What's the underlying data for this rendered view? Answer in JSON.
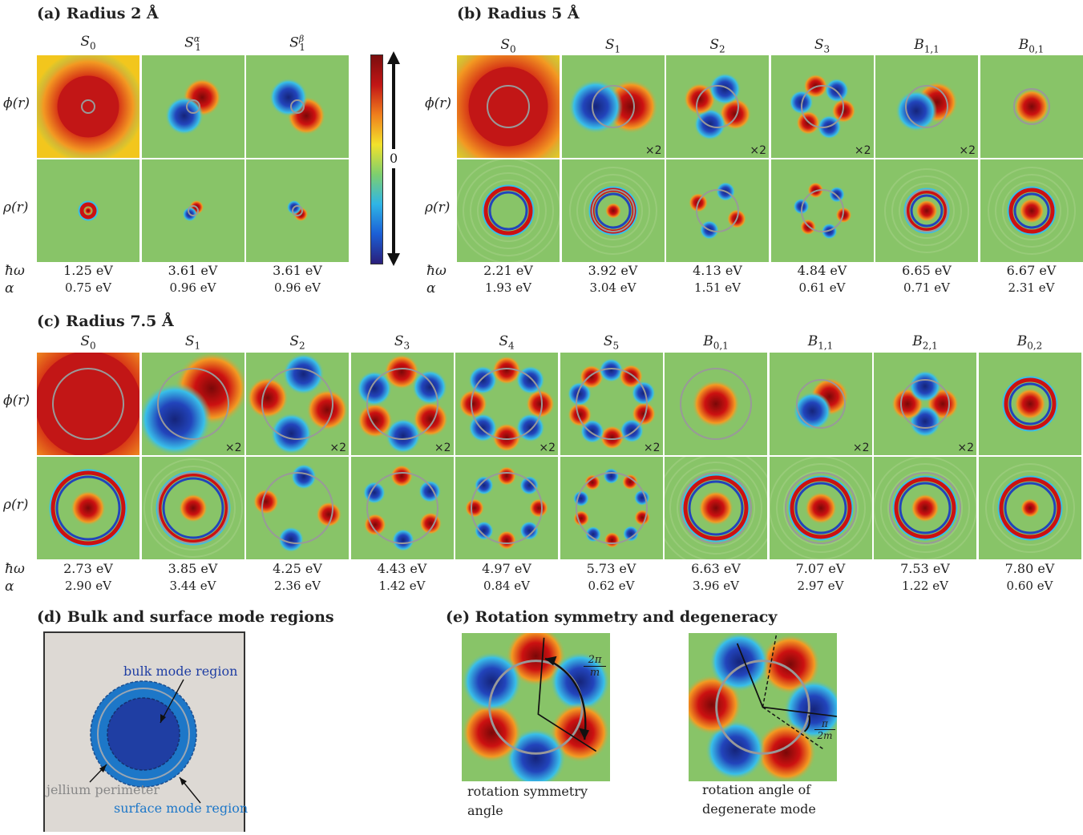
{
  "panels": {
    "a": {
      "title": "(a) Radius 2 Å",
      "cols": [
        "S0",
        "S1α",
        "S1β"
      ],
      "hw": [
        "1.25 eV",
        "3.61 eV",
        "3.61 eV"
      ],
      "alpha": [
        "0.75 eV",
        "0.96 eV",
        "0.96 eV"
      ]
    },
    "b": {
      "title": "(b) Radius 5 Å",
      "cols": [
        "S0",
        "S1",
        "S2",
        "S3",
        "B1,1",
        "B0,1"
      ],
      "hw": [
        "2.21 eV",
        "3.92 eV",
        "4.13 eV",
        "4.84 eV",
        "6.65 eV",
        "6.67 eV"
      ],
      "alpha": [
        "1.93 eV",
        "3.04 eV",
        "1.51 eV",
        "0.61 eV",
        "0.71 eV",
        "2.31 eV"
      ]
    },
    "c": {
      "title": "(c) Radius 7.5 Å",
      "cols": [
        "S0",
        "S1",
        "S2",
        "S3",
        "S4",
        "S5",
        "B0,1",
        "B1,1",
        "B2,1",
        "B0,2"
      ],
      "hw": [
        "2.73 eV",
        "3.85 eV",
        "4.25 eV",
        "4.43 eV",
        "4.97 eV",
        "5.73 eV",
        "6.63 eV",
        "7.07 eV",
        "7.53 eV",
        "7.80 eV"
      ],
      "alpha": [
        "2.90 eV",
        "3.44 eV",
        "2.36 eV",
        "1.42 eV",
        "0.84 eV",
        "0.62 eV",
        "3.96 eV",
        "2.97 eV",
        "1.22 eV",
        "0.60 eV"
      ]
    },
    "d": {
      "title": "(d) Bulk and surface mode regions",
      "bulk": "bulk mode region",
      "jellium": "jellium perimeter",
      "surface": "surface mode region"
    },
    "e": {
      "title": "(e) Rotation symmetry and degeneracy",
      "cap1a": "rotation symmetry",
      "cap1b": "angle",
      "cap2a": "rotation angle of",
      "cap2b": "degenerate mode",
      "ann1a": "2π",
      "ann1b": "m",
      "ann2a": "π",
      "ann2b": "2m"
    }
  },
  "labels": {
    "phi": "ϕ(r)",
    "rho": "ρ(r)",
    "hw": "ħω",
    "alpha": "α",
    "mult": "×2",
    "zero": "0"
  },
  "colors": {
    "background": "#88c468",
    "positive": "#cc1111",
    "negative": "#2244bb",
    "ring": "#999999"
  },
  "colorbar": [
    "#2a1f7a",
    "#1b5fd6",
    "#2fb5e6",
    "#7ecf6e",
    "#f2e22b",
    "#f07f1d",
    "#c21616",
    "#7a0e0e"
  ]
}
